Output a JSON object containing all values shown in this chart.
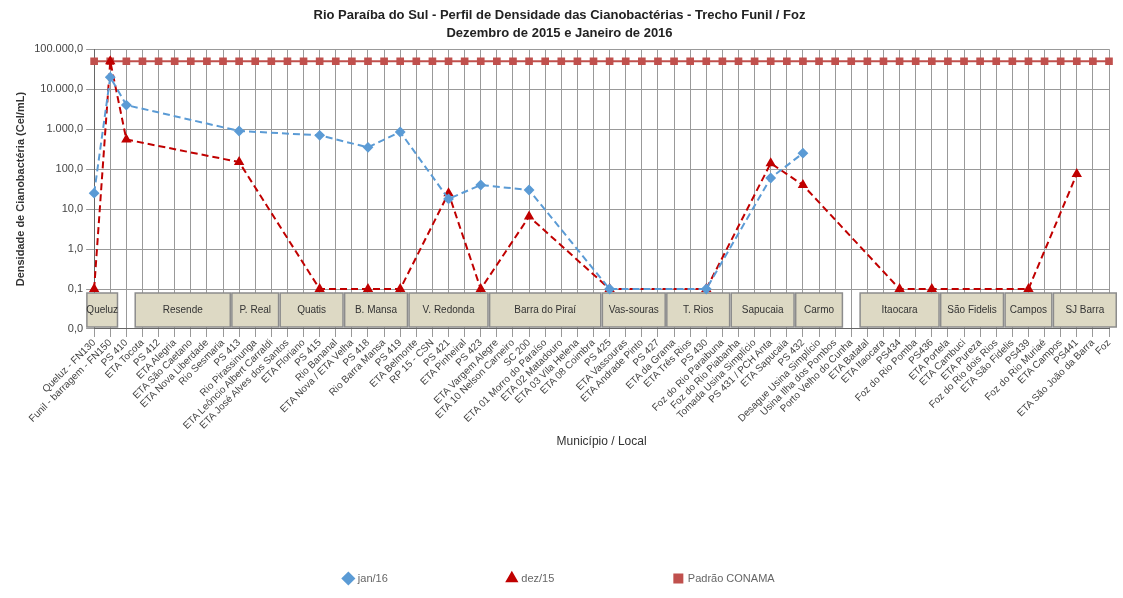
{
  "chart_data": {
    "type": "line",
    "title": "Rio Paraíba do Sul - Perfil de Densidade das Cianobactérias - Trecho Funil / Foz",
    "subtitle": "Dezembro de 2015 e Janeiro de 2016",
    "xlabel": "Município / Local",
    "ylabel": "Densidade de Cianobactéria (Cel/mL)",
    "categories": [
      "Queluz - FN130",
      "Funil - barragem - FN150",
      "PS 410",
      "ETA Tocota",
      "PS 412",
      "ETA Alegria",
      "ETA São Caetano",
      "ETA Nova Liberdade",
      "Rio Sesmaria",
      "PS 413",
      "Rio Pirassinunga",
      "ETA Leôncio Albert Carraldi",
      "ETA José Alves dos Santos",
      "ETA Floriano",
      "PS 415",
      "Rio Bananal",
      "ETA Nova / ETA Velha",
      "PS 418",
      "Rio Barra Mansa",
      "PS 419",
      "ETA Belmonte",
      "RP 15 - CSN",
      "PS 421",
      "ETA Pinheiral",
      "PS 423",
      "ETA Vargem Alegre",
      "ETA 10 Nelson Carneiro",
      "SC 200",
      "ETA 01 Morro do Paraíso",
      "ETA 02 Matadouro",
      "ETA 03 Vila Helena",
      "ETA 08 Coimbra",
      "PS 425",
      "ETA Vassouras",
      "ETA Andrade Pinto",
      "PS 427",
      "ETA da Grama",
      "ETA Três Rios",
      "PS 430",
      "Foz do Rio Paraibuna",
      "Foz do Rio Piabanha",
      "Tomada Usina Simplício",
      "PS 431 / PCH Anta",
      "ETA Sapucaia",
      "PS 432",
      "Desague Usina Simplício",
      "Usina Ilha dos Pombos",
      "Porto Velho do Cunha",
      "ETA Batatal",
      "ETA Itaocara",
      "PS434",
      "Foz do Rio Pomba",
      "PS436",
      "ETA Portela",
      "ETA Cambuci",
      "ETA Pureza",
      "Foz do Rio dois Rios",
      "ETA São Fidelis",
      "PS439",
      "Foz do Rio Muriaé",
      "ETA Campos",
      "PS441",
      "ETA São João da Barra",
      "Foz"
    ],
    "series": [
      {
        "name": "Padrão CONAMA",
        "color": "#c0504d",
        "marker": "square",
        "line_style": "solid",
        "values": [
          50000,
          50000,
          50000,
          50000,
          50000,
          50000,
          50000,
          50000,
          50000,
          50000,
          50000,
          50000,
          50000,
          50000,
          50000,
          50000,
          50000,
          50000,
          50000,
          50000,
          50000,
          50000,
          50000,
          50000,
          50000,
          50000,
          50000,
          50000,
          50000,
          50000,
          50000,
          50000,
          50000,
          50000,
          50000,
          50000,
          50000,
          50000,
          50000,
          50000,
          50000,
          50000,
          50000,
          50000,
          50000,
          50000,
          50000,
          50000,
          50000,
          50000,
          50000,
          50000,
          50000,
          50000,
          50000,
          50000,
          50000,
          50000,
          50000,
          50000,
          50000,
          50000,
          50000,
          50000
        ]
      },
      {
        "name": "dez/15",
        "color": "#c00000",
        "marker": "triangle",
        "line_style": "dashed",
        "values": [
          0.1,
          50000,
          550,
          null,
          null,
          null,
          null,
          null,
          null,
          150,
          null,
          null,
          null,
          null,
          0.1,
          null,
          null,
          0.1,
          null,
          0.1,
          null,
          null,
          25,
          null,
          0.1,
          null,
          null,
          6.5,
          null,
          null,
          null,
          null,
          0.1,
          null,
          null,
          null,
          null,
          null,
          0.1,
          null,
          null,
          null,
          140,
          null,
          40,
          null,
          null,
          null,
          null,
          null,
          0.1,
          null,
          0.1,
          null,
          null,
          null,
          null,
          null,
          0.1,
          null,
          null,
          75,
          null,
          null
        ]
      },
      {
        "name": "jan/16",
        "color": "#5b9bd5",
        "marker": "diamond",
        "line_style": "dashed",
        "values": [
          25,
          20000,
          4000,
          null,
          null,
          null,
          null,
          null,
          null,
          900,
          null,
          null,
          null,
          null,
          700,
          null,
          null,
          350,
          null,
          850,
          null,
          null,
          18,
          null,
          40,
          null,
          null,
          30,
          null,
          null,
          null,
          null,
          0.1,
          null,
          null,
          null,
          null,
          null,
          0.1,
          null,
          null,
          null,
          60,
          null,
          250,
          null,
          null,
          null,
          null,
          null,
          null,
          null,
          null,
          null,
          null,
          null,
          null,
          null,
          null,
          null,
          null,
          null,
          null,
          null
        ]
      }
    ],
    "bands": [
      {
        "axis": "x",
        "from": "Queluz - FN130",
        "to": "Funil - barragem - FN150",
        "label": "Queluz",
        "color": "#ddd9c4"
      },
      {
        "axis": "x",
        "from": "ETA Tocota",
        "to": "Rio Sesmaria",
        "label": "Resende",
        "color": "#ddd9c4"
      },
      {
        "axis": "x",
        "from": "PS 413",
        "to": "ETA Leôncio Albert Carraldi",
        "label": "P. Real",
        "color": "#ddd9c4"
      },
      {
        "axis": "x",
        "from": "ETA José Alves dos Santos",
        "to": "Rio Bananal",
        "label": "Quatis",
        "color": "#ddd9c4"
      },
      {
        "axis": "x",
        "from": "ETA Nova / ETA Velha",
        "to": "PS 419",
        "label": "B. Mansa",
        "color": "#ddd9c4"
      },
      {
        "axis": "x",
        "from": "ETA Belmonte",
        "to": "PS 423",
        "label": "V. Redonda",
        "color": "#ddd9c4"
      },
      {
        "axis": "x",
        "from": "ETA Vargem Alegre",
        "to": "ETA 08 Coimbra",
        "label": "Barra do Piraí",
        "color": "#ddd9c4"
      },
      {
        "axis": "x",
        "from": "PS 425",
        "to": "PS 427",
        "label": "Vas-souras",
        "color": "#ddd9c4"
      },
      {
        "axis": "x",
        "from": "ETA da Grama",
        "to": "Foz do Rio Paraibuna",
        "label": "T. Rios",
        "color": "#ddd9c4"
      },
      {
        "axis": "x",
        "from": "Foz do Rio Piabanha",
        "to": "ETA Sapucaia",
        "label": "Sapucaia",
        "color": "#ddd9c4"
      },
      {
        "axis": "x",
        "from": "PS 432",
        "to": "Usina Ilha dos Pombos",
        "label": "Carmo",
        "color": "#ddd9c4"
      },
      {
        "axis": "x",
        "from": "ETA Batatal",
        "to": "PS436",
        "label": "Itaocara",
        "color": "#ddd9c4"
      },
      {
        "axis": "x",
        "from": "ETA Portela",
        "to": "Foz do Rio dois Rios",
        "label": "São Fidelis",
        "color": "#ddd9c4"
      },
      {
        "axis": "x",
        "from": "ETA São Fidelis",
        "to": "Foz do Rio Muriaé",
        "label": "Campos",
        "color": "#ddd9c4"
      },
      {
        "axis": "x",
        "from": "ETA Campos",
        "to": "Foz",
        "label": "SJ Barra",
        "color": "#ddd9c4"
      }
    ],
    "log": "y",
    "ylim": [
      0.01,
      100000
    ],
    "yticks": [
      {
        "value": 0.01,
        "label": "0,0"
      },
      {
        "value": 0.1,
        "label": "0,1"
      },
      {
        "value": 1,
        "label": "1,0"
      },
      {
        "value": 10,
        "label": "10,0"
      },
      {
        "value": 100,
        "label": "100,0"
      },
      {
        "value": 1000,
        "label": "1.000,0"
      },
      {
        "value": 10000,
        "label": "10.000,0"
      },
      {
        "value": 100000,
        "label": "100.000,0"
      }
    ],
    "grid": true,
    "legend": "bottom"
  }
}
